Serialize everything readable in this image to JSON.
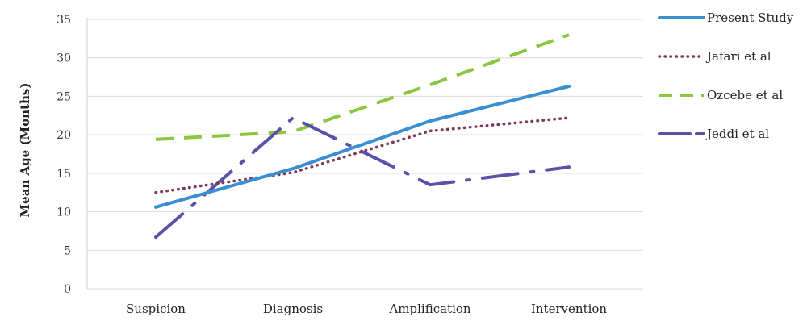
{
  "chart_data": {
    "type": "line",
    "categories": [
      "Suspicion",
      "Diagnosis",
      "Amplification",
      "Intervention"
    ],
    "ylabel": "Mean Age (Months)",
    "xlabel": "",
    "ylim": [
      0,
      35
    ],
    "yticks": [
      0,
      5,
      10,
      15,
      20,
      25,
      30,
      35
    ],
    "grid": true,
    "legend_position": "right",
    "series": [
      {
        "name": "Present Study",
        "values": [
          10.6,
          15.6,
          21.8,
          26.3
        ],
        "color": "#3a8fd0",
        "style": "solid"
      },
      {
        "name": "Jafari et al",
        "values": [
          12.5,
          15.1,
          20.5,
          22.2
        ],
        "color": "#7b3a5c",
        "style": "dotted"
      },
      {
        "name": "Ozcebe et al",
        "values": [
          19.4,
          20.4,
          26.5,
          33.0
        ],
        "color": "#8cc63f",
        "style": "dashed"
      },
      {
        "name": "Jeddi et al",
        "values": [
          6.7,
          22.2,
          13.5,
          15.8
        ],
        "color": "#5a52a8",
        "style": "longdash-dot"
      }
    ]
  }
}
